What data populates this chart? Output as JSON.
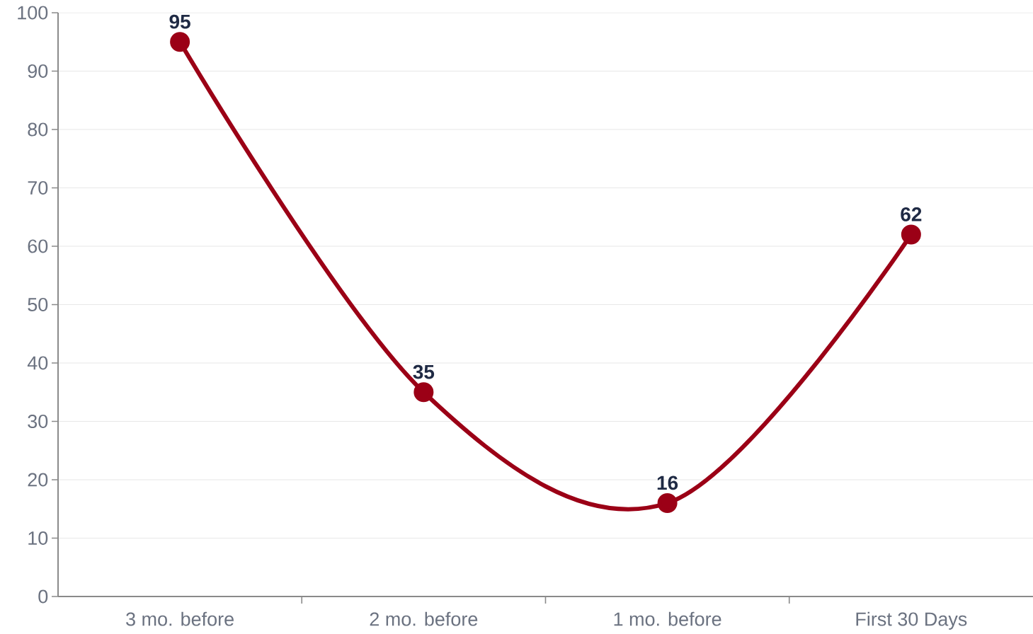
{
  "chart_data": {
    "type": "line",
    "categories": [
      "3 mo. before",
      "2 mo. before",
      "1 mo. before",
      "First 30 Days"
    ],
    "values": [
      95,
      35,
      16,
      62
    ],
    "color": "#9b0016",
    "ylim": [
      0,
      100
    ],
    "yticks": [
      0,
      10,
      20,
      30,
      40,
      50,
      60,
      70,
      80,
      90,
      100
    ],
    "grid": "y",
    "marker": "circle",
    "line_style": "solid",
    "data_labels": true
  }
}
